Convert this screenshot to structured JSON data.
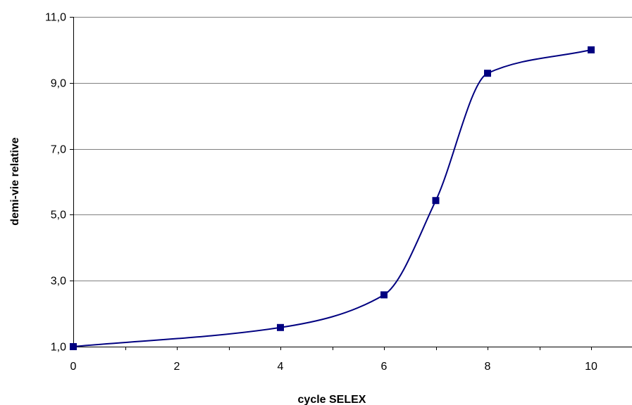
{
  "chart_data": {
    "type": "line",
    "title": "",
    "xlabel": "cycle SELEX",
    "ylabel": "demi-vie relative",
    "xlim": [
      0,
      11
    ],
    "ylim": [
      1.0,
      11.0
    ],
    "x_ticks": [
      0,
      2,
      4,
      6,
      8,
      10
    ],
    "x_tick_labels": [
      "0",
      "2",
      "4",
      "6",
      "8",
      "10"
    ],
    "y_ticks": [
      1.0,
      3.0,
      5.0,
      7.0,
      9.0,
      11.0
    ],
    "y_tick_labels": [
      "1,0",
      "3,0",
      "5,0",
      "7,0",
      "9,0",
      "11,0"
    ],
    "grid": {
      "horizontal": true,
      "vertical": false
    },
    "series": [
      {
        "smooth": true,
        "marker": "square",
        "color": "#000080",
        "x": [
          0,
          4,
          6,
          7,
          8,
          10
        ],
        "y": [
          1.0,
          1.58,
          2.57,
          5.43,
          9.29,
          10.0
        ]
      }
    ]
  }
}
